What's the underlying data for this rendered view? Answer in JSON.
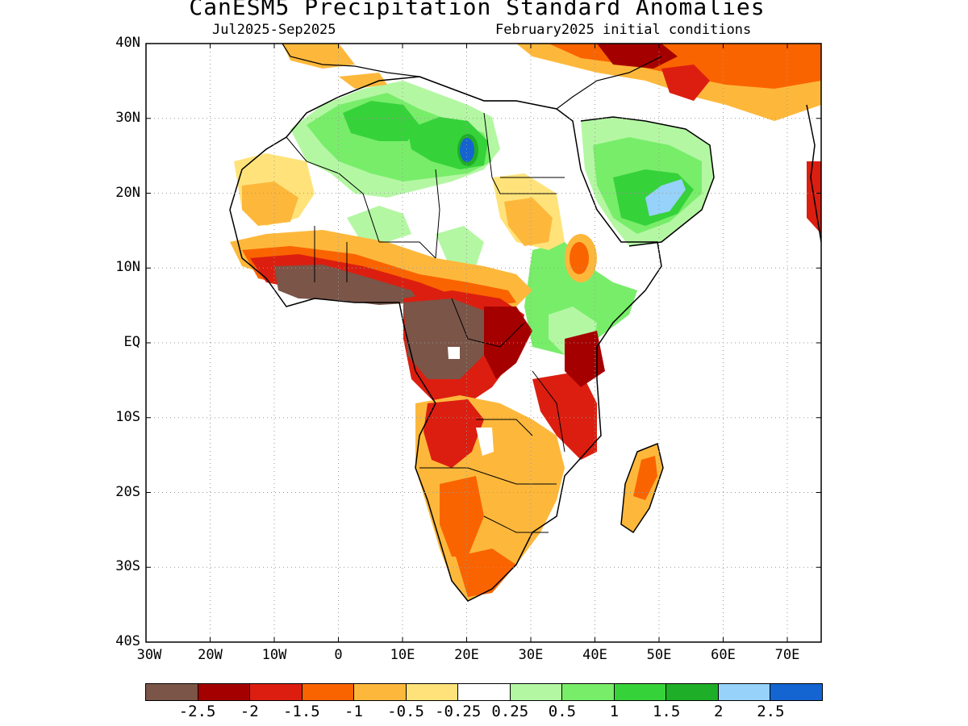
{
  "title": "CanESM5 Precipitation Standard Anomalies",
  "subtitle_left": "Jul2025-Sep2025",
  "subtitle_right": "February2025 initial conditions",
  "y_ticks": [
    "40N",
    "30N",
    "20N",
    "10N",
    "EQ",
    "10S",
    "20S",
    "30S",
    "40S"
  ],
  "x_ticks": [
    "30W",
    "20W",
    "10W",
    "0",
    "10E",
    "20E",
    "30E",
    "40E",
    "50E",
    "60E",
    "70E"
  ],
  "colorbar": {
    "colors": [
      "#7a5548",
      "#a50000",
      "#dc1e10",
      "#fa6400",
      "#fdb83c",
      "#ffe37a",
      "#ffffff",
      "#b4f7a3",
      "#78ed6a",
      "#36d23a",
      "#1fae27",
      "#96d2fa",
      "#1464d2"
    ],
    "labels": [
      "-2.5",
      "-2",
      "-1.5",
      "-1",
      "-0.5",
      "-0.25",
      "0.25",
      "0.5",
      "1",
      "1.5",
      "2",
      "2.5"
    ]
  },
  "legend_colors": {
    "dry_extreme": "#7a5548",
    "dry_strong": "#a50000",
    "dry_mod": "#dc1e10",
    "dry": "#fa6400",
    "dry_light": "#fdb83c",
    "dry_weak": "#ffe37a",
    "wet_weak": "#b4f7a3",
    "wet_light": "#78ed6a",
    "wet_mod": "#36d23a",
    "wet_strong": "#1fae27",
    "wet_extreme": "#96d2fa",
    "wet_max": "#1464d2"
  }
}
